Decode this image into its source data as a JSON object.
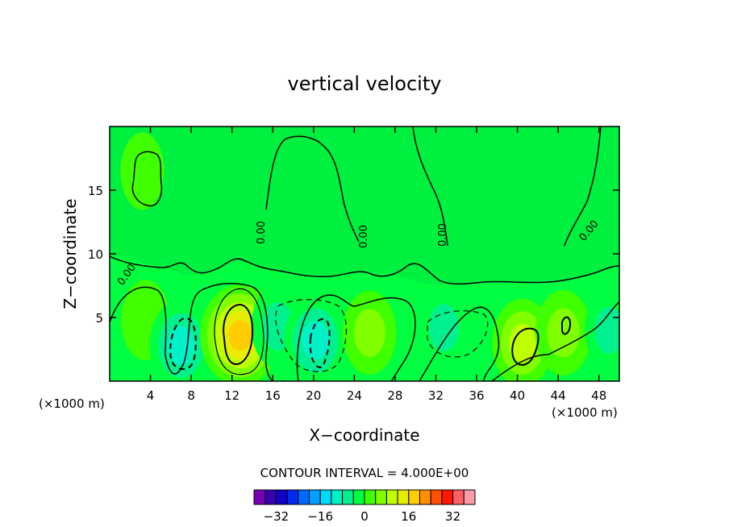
{
  "chart_data": {
    "type": "heatmap",
    "title": "vertical velocity",
    "xlabel": "X−coordinate",
    "ylabel": "Z−coordinate",
    "x_unit_left": "(×1000 m)",
    "x_unit_right": "(×1000 m)",
    "xlim": [
      0,
      50
    ],
    "ylim": [
      0,
      20
    ],
    "x_ticks": [
      "4",
      "8",
      "12",
      "16",
      "20",
      "24",
      "28",
      "32",
      "36",
      "40",
      "44",
      "48"
    ],
    "x_tick_values": [
      4,
      8,
      12,
      16,
      20,
      24,
      28,
      32,
      36,
      40,
      44,
      48
    ],
    "y_ticks": [
      "5",
      "10",
      "15"
    ],
    "y_tick_values": [
      5,
      10,
      15
    ],
    "contour_interval_text": "CONTOUR INTERVAL = 4.000E+00",
    "contour_interval": 4,
    "contour_labels": [
      "0.00",
      "0.00",
      "0.00",
      "0.00",
      "0.00"
    ],
    "background_value": 0,
    "features": [
      {
        "x": 3.5,
        "z": 4.8,
        "peak": 4
      },
      {
        "x": 7.0,
        "z": 2.8,
        "peak": -10
      },
      {
        "x": 12.8,
        "z": 3.6,
        "peak": 17
      },
      {
        "x": 16.5,
        "z": 4.3,
        "peak": -6
      },
      {
        "x": 20.2,
        "z": 3.2,
        "peak": -10
      },
      {
        "x": 25.5,
        "z": 3.8,
        "peak": 6
      },
      {
        "x": 32.8,
        "z": 4.2,
        "peak": -5
      },
      {
        "x": 40.5,
        "z": 3.0,
        "peak": 9
      },
      {
        "x": 44.5,
        "z": 3.8,
        "peak": 7
      },
      {
        "x": 49.0,
        "z": 4.0,
        "peak": -4
      },
      {
        "x": 3.2,
        "z": 16.5,
        "peak": 2
      }
    ],
    "colorbar": {
      "tick_labels": [
        "−32",
        "−16",
        "0",
        "16",
        "32"
      ],
      "tick_values": [
        -32,
        -16,
        0,
        16,
        32
      ],
      "levels": [
        -36,
        -32,
        -28,
        -24,
        -20,
        -16,
        -12,
        -8,
        -4,
        0,
        4,
        8,
        12,
        16,
        20,
        24,
        28,
        32,
        36
      ],
      "colors": [
        "#7a00b8",
        "#3a00b0",
        "#1000c8",
        "#0028f0",
        "#0068ff",
        "#00a0ff",
        "#00d8f8",
        "#00f0c8",
        "#00f090",
        "#00ff40",
        "#40ff00",
        "#80ff00",
        "#c0ff00",
        "#e8ec00",
        "#ffcc00",
        "#ff9000",
        "#ff5000",
        "#ff1800",
        "#ff6060",
        "#ff9aaa"
      ]
    }
  }
}
